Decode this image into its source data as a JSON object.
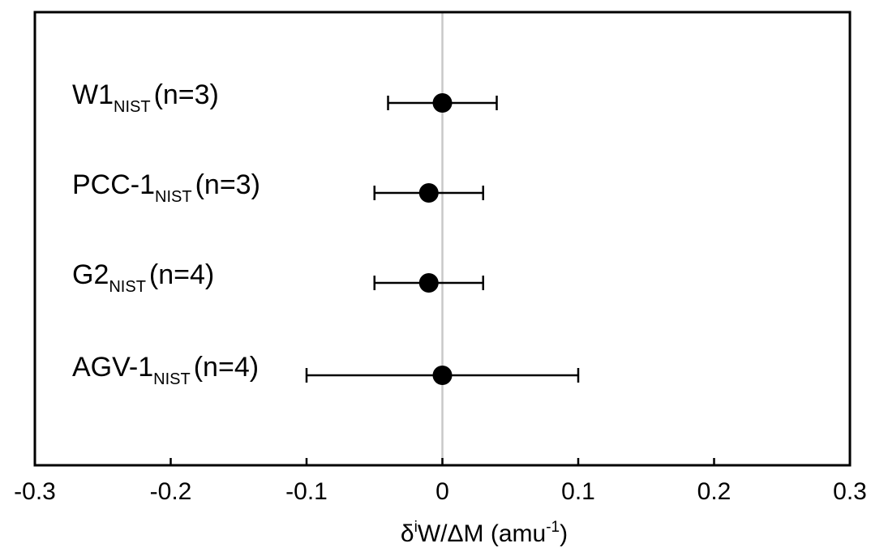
{
  "chart_data": {
    "type": "scatter",
    "orientation": "horizontal",
    "xlim": [
      -0.3,
      0.3
    ],
    "xticks": [
      -0.3,
      -0.2,
      -0.1,
      0,
      0.1,
      0.2,
      0.3
    ],
    "xtick_labels": [
      "-0.3",
      "-0.2",
      "-0.1",
      "0",
      "0.1",
      "0.2",
      "0.3"
    ],
    "xlabel": {
      "base": "δ",
      "sup1": "i",
      "mid": "W/ΔM (amu",
      "sup2": "-1",
      "end": ")"
    },
    "reference_line_x": 0,
    "grid": false,
    "legend": "none",
    "categories": [
      {
        "name": "W1",
        "subscript": "NIST",
        "count": "(n=3)",
        "value": 0.0,
        "err_low": -0.04,
        "err_high": 0.04
      },
      {
        "name": "PCC-1",
        "subscript": "NIST",
        "count": "(n=3)",
        "value": -0.01,
        "err_low": -0.05,
        "err_high": 0.03
      },
      {
        "name": "G2",
        "subscript": "NIST",
        "count": "(n=4)",
        "value": -0.01,
        "err_low": -0.05,
        "err_high": 0.03
      },
      {
        "name": "AGV-1",
        "subscript": "NIST",
        "count": "(n=4)",
        "value": 0.0,
        "err_low": -0.1,
        "err_high": 0.1
      }
    ],
    "colors": {
      "marker": "#000000",
      "errorbar": "#000000",
      "frame": "#000000",
      "reference_line": "#c8c8c8"
    }
  }
}
